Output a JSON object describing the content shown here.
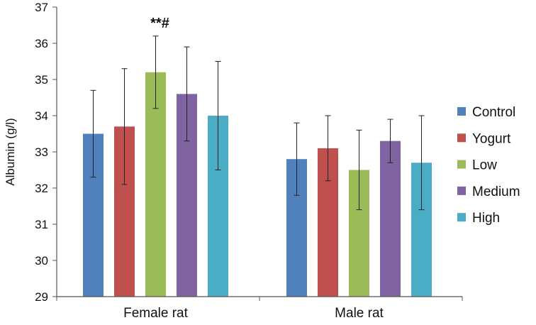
{
  "chart_data": {
    "type": "bar",
    "title": "",
    "xlabel": "",
    "ylabel": "Albumin (g/l)",
    "ylim": [
      29,
      37
    ],
    "yticks": [
      29,
      30,
      31,
      32,
      33,
      34,
      35,
      36,
      37
    ],
    "categories": [
      "Female rat",
      "Male rat"
    ],
    "legend_position": "right",
    "grid": false,
    "series": [
      {
        "name": "Control",
        "color": "#4f81bd",
        "values": [
          33.5,
          32.8
        ],
        "err_low": [
          32.3,
          31.8
        ],
        "err_high": [
          34.7,
          33.8
        ]
      },
      {
        "name": "Yogurt",
        "color": "#c0504d",
        "values": [
          33.7,
          33.1
        ],
        "err_low": [
          32.1,
          32.2
        ],
        "err_high": [
          35.3,
          34.0
        ]
      },
      {
        "name": "Low",
        "color": "#9bbb59",
        "values": [
          35.2,
          32.5
        ],
        "err_low": [
          34.2,
          31.4
        ],
        "err_high": [
          36.2,
          33.6
        ]
      },
      {
        "name": "Medium",
        "color": "#8064a2",
        "values": [
          34.6,
          33.3
        ],
        "err_low": [
          33.3,
          32.7
        ],
        "err_high": [
          35.9,
          33.9
        ]
      },
      {
        "name": "High",
        "color": "#4bacc6",
        "values": [
          34.0,
          32.7
        ],
        "err_low": [
          32.5,
          31.4
        ],
        "err_high": [
          35.5,
          34.0
        ]
      }
    ],
    "annotations": [
      {
        "text": "**#",
        "category": "Female rat",
        "series": "Low"
      }
    ]
  }
}
